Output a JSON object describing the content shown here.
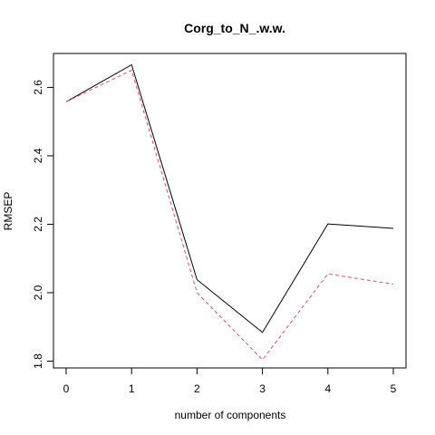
{
  "chart_data": {
    "type": "line",
    "title": "Corg_to_N_.w.w.",
    "xlabel": "number of components",
    "ylabel": "RMSEP",
    "x": [
      0,
      1,
      2,
      3,
      4,
      5
    ],
    "xlim": [
      0,
      5
    ],
    "ylim": [
      1.8,
      2.67
    ],
    "xticks": [
      "0",
      "1",
      "2",
      "3",
      "4",
      "5"
    ],
    "yticks": [
      "1.8",
      "2.0",
      "2.2",
      "2.4",
      "2.6"
    ],
    "grid": false,
    "legend": "none",
    "series": [
      {
        "values": [
          2.558,
          2.666,
          2.038,
          1.884,
          2.201,
          2.188
        ],
        "color": "#000000",
        "dash": "solid"
      },
      {
        "values": [
          2.558,
          2.65,
          2.0,
          1.804,
          2.055,
          2.025
        ],
        "color": "#df536b",
        "dash": "dashed"
      }
    ]
  }
}
